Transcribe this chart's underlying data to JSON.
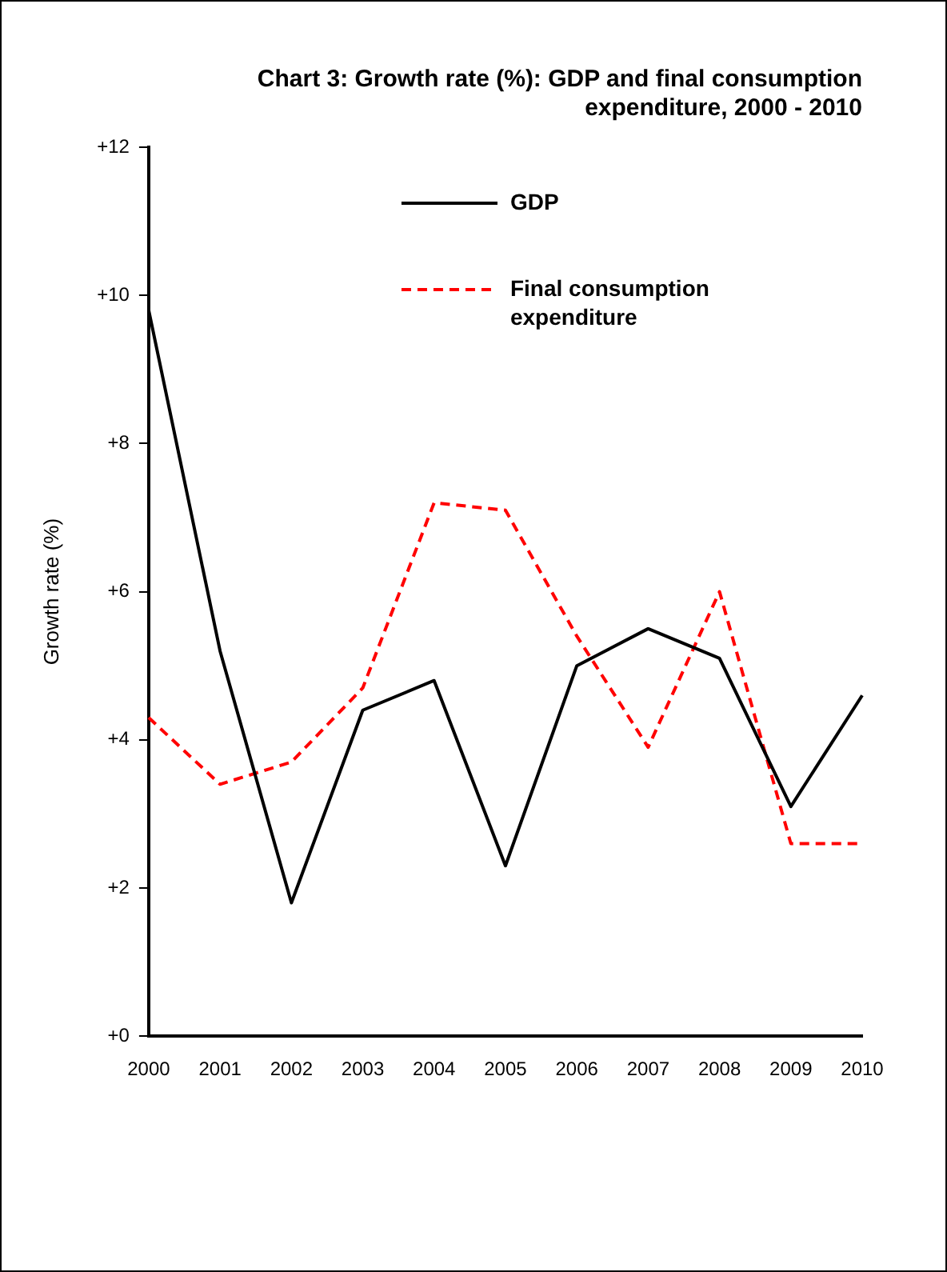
{
  "chart_data": {
    "type": "line",
    "title": "Chart 3: Growth rate (%): GDP and final consumption expenditure, 2000 - 2010",
    "ylabel": "Growth rate (%)",
    "categories": [
      "2000",
      "2001",
      "2002",
      "2003",
      "2004",
      "2005",
      "2006",
      "2007",
      "2008",
      "2009",
      "2010"
    ],
    "series": [
      {
        "name": "GDP",
        "color": "#000000",
        "line_style": "solid",
        "values": [
          9.8,
          5.2,
          1.8,
          4.4,
          4.8,
          2.3,
          5.0,
          5.5,
          5.1,
          3.1,
          4.6
        ]
      },
      {
        "name": "Final consumption expenditure",
        "color": "#ff0000",
        "line_style": "dashed",
        "values": [
          4.3,
          3.4,
          3.7,
          4.7,
          7.2,
          7.1,
          5.4,
          3.9,
          6.0,
          2.6,
          2.6
        ]
      }
    ],
    "ylim": [
      0,
      12
    ],
    "yticks": [
      {
        "value": 0,
        "label": "+0"
      },
      {
        "value": 2,
        "label": "+2"
      },
      {
        "value": 4,
        "label": "+4"
      },
      {
        "value": 6,
        "label": "+6"
      },
      {
        "value": 8,
        "label": "+8"
      },
      {
        "value": 10,
        "label": "+10"
      },
      {
        "value": 12,
        "label": "+12"
      }
    ],
    "grid": false,
    "legend": "top right",
    "marker": "none"
  }
}
